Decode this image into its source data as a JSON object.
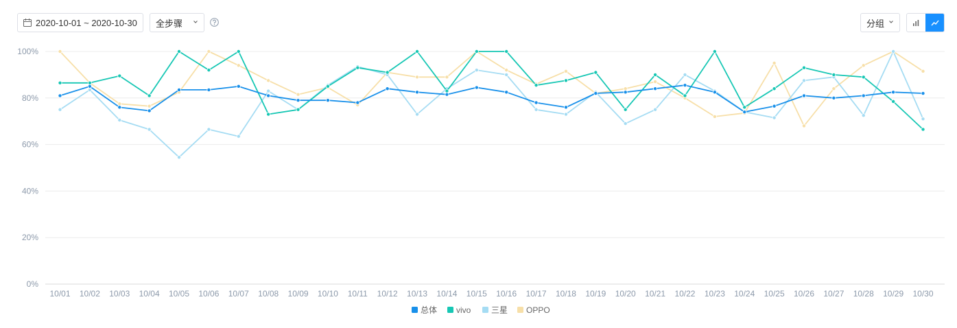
{
  "toolbar": {
    "date_range": "2020-10-01 ~ 2020-10-30",
    "step_select": "全步骤",
    "group_select": "分组"
  },
  "icons": {
    "date": "calendar-icon",
    "step_chevron": "chevron-down-icon",
    "help": "question-circle-icon",
    "group_chevron": "chevron-down-icon",
    "bar_view": "bar-chart-icon",
    "line_view": "line-chart-icon"
  },
  "colors": {
    "accent": "#1890ff",
    "axis_text": "#8c99aa",
    "grid": "#ececec"
  },
  "chart_data": {
    "type": "line",
    "categories": [
      "10/01",
      "10/02",
      "10/03",
      "10/04",
      "10/05",
      "10/06",
      "10/07",
      "10/08",
      "10/09",
      "10/10",
      "10/11",
      "10/12",
      "10/13",
      "10/14",
      "10/15",
      "10/16",
      "10/17",
      "10/18",
      "10/19",
      "10/20",
      "10/21",
      "10/22",
      "10/23",
      "10/24",
      "10/25",
      "10/26",
      "10/27",
      "10/28",
      "10/29",
      "10/30"
    ],
    "ylim": [
      0,
      100
    ],
    "yticks": [
      "0%",
      "20%",
      "40%",
      "60%",
      "80%",
      "100%"
    ],
    "ytick_values": [
      0,
      20,
      40,
      60,
      80,
      100
    ],
    "grid": true,
    "legend_position": "bottom-center",
    "series": [
      {
        "name": "总体",
        "color": "#1890ea",
        "values": [
          81,
          85,
          76,
          74.5,
          83.5,
          83.5,
          85,
          81,
          79,
          79,
          78,
          84,
          82.5,
          81.5,
          84.5,
          82.5,
          78,
          76,
          82,
          82.5,
          84,
          85.5,
          82.5,
          74,
          76.5,
          81,
          80,
          81,
          82.5,
          82
        ]
      },
      {
        "name": "vivo",
        "color": "#17c7b4",
        "values": [
          86.5,
          86.5,
          89.5,
          81,
          100,
          92,
          100,
          73,
          75,
          85,
          93,
          91,
          100,
          83,
          100,
          100,
          85.5,
          87.5,
          91,
          75,
          90,
          81,
          100,
          76,
          84,
          93,
          90,
          89,
          78.5,
          66.5
        ]
      },
      {
        "name": "三星",
        "color": "#a5dcf3",
        "values": [
          75,
          83.5,
          70.5,
          66.5,
          54.5,
          66.5,
          63.5,
          83,
          75,
          85.5,
          93.5,
          90,
          73,
          84,
          92,
          90,
          75,
          73,
          82.5,
          69,
          75,
          90,
          83,
          74,
          71.5,
          87.5,
          89,
          72.5,
          100,
          71
        ]
      },
      {
        "name": "OPPO",
        "color": "#f7dfa8",
        "values": [
          100,
          86.5,
          77.5,
          76.5,
          82.5,
          100,
          94,
          87.5,
          81.5,
          84.5,
          77,
          91,
          89,
          89,
          100,
          92,
          86,
          91.5,
          82,
          84,
          87,
          80,
          72,
          73.5,
          95,
          68,
          84,
          94,
          100,
          91.5
        ]
      }
    ]
  }
}
